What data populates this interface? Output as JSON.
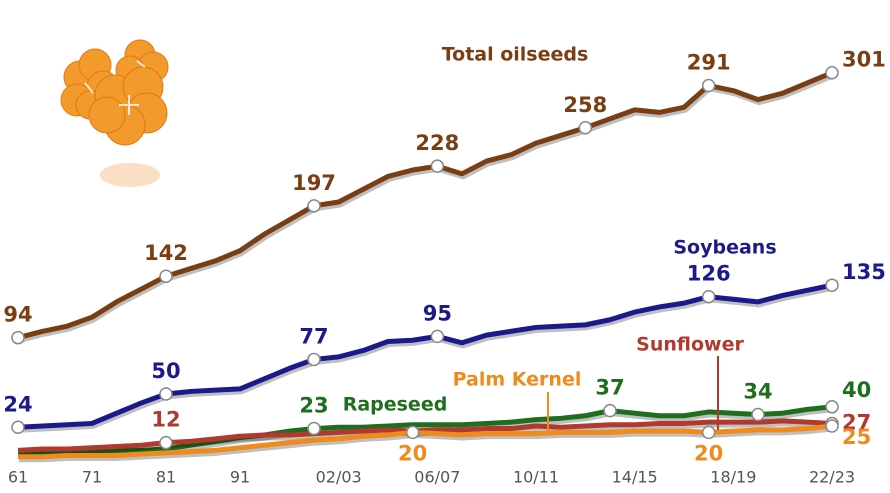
{
  "chart_data": {
    "type": "line",
    "categories": [
      "61",
      null,
      null,
      "71",
      null,
      null,
      "81",
      null,
      null,
      "91",
      null,
      null,
      null,
      "02/03",
      null,
      null,
      null,
      "06/07",
      null,
      null,
      null,
      "10/11",
      null,
      null,
      null,
      "14/15",
      null,
      null,
      null,
      "18/19",
      null,
      null,
      null,
      "22/23"
    ],
    "ylim": [
      0,
      320
    ],
    "series": [
      {
        "name": "Total oilseeds",
        "color": "#7a3e12",
        "values": [
          94,
          99,
          103,
          110,
          122,
          132,
          142,
          148,
          154,
          162,
          175,
          186,
          197,
          200,
          210,
          220,
          225,
          228,
          222,
          232,
          237,
          246,
          252,
          258,
          265,
          272,
          270,
          274,
          291,
          287,
          280,
          285,
          293,
          301
        ],
        "value_labels": [
          "94",
          null,
          null,
          null,
          null,
          null,
          "142",
          null,
          null,
          null,
          null,
          null,
          "197",
          null,
          null,
          null,
          null,
          "228",
          null,
          null,
          null,
          null,
          null,
          "258",
          null,
          null,
          null,
          null,
          "291",
          null,
          null,
          null,
          null,
          "301"
        ]
      },
      {
        "name": "Soybeans",
        "color": "#1a1a8c",
        "values": [
          24,
          25,
          26,
          27,
          35,
          43,
          50,
          52,
          53,
          54,
          62,
          70,
          77,
          79,
          84,
          91,
          92,
          95,
          90,
          96,
          99,
          102,
          103,
          104,
          108,
          114,
          118,
          121,
          126,
          124,
          122,
          127,
          131,
          135
        ],
        "value_labels": [
          "24",
          null,
          null,
          null,
          null,
          null,
          "50",
          null,
          null,
          null,
          null,
          null,
          "77",
          null,
          null,
          null,
          null,
          "95",
          null,
          null,
          null,
          null,
          null,
          null,
          null,
          null,
          null,
          null,
          "126",
          null,
          null,
          null,
          null,
          "135"
        ]
      },
      {
        "name": "Rapeseed",
        "color": "#1e6e1e",
        "values": [
          4,
          4,
          5,
          5,
          6,
          6,
          7,
          10,
          13,
          16,
          18,
          21,
          23,
          24,
          24,
          25,
          26,
          26,
          26,
          27,
          28,
          30,
          31,
          33,
          37,
          35,
          33,
          33,
          36,
          35,
          34,
          35,
          38,
          40
        ],
        "value_labels": [
          null,
          null,
          null,
          null,
          null,
          null,
          null,
          null,
          null,
          null,
          null,
          null,
          "23",
          null,
          null,
          null,
          null,
          null,
          null,
          null,
          null,
          null,
          null,
          null,
          "37",
          null,
          null,
          null,
          null,
          null,
          "34",
          null,
          null,
          "40"
        ]
      },
      {
        "name": "Sunflower",
        "color": "#b03a2e",
        "values": [
          6,
          7,
          7,
          8,
          9,
          10,
          12,
          13,
          15,
          17,
          18,
          18,
          19,
          20,
          21,
          22,
          21,
          22,
          22,
          23,
          23,
          25,
          24,
          25,
          26,
          26,
          27,
          27,
          28,
          28,
          28,
          29,
          28,
          27
        ],
        "value_labels": [
          null,
          null,
          null,
          null,
          null,
          null,
          "12",
          null,
          null,
          null,
          null,
          null,
          null,
          null,
          null,
          null,
          null,
          null,
          null,
          null,
          null,
          null,
          null,
          null,
          null,
          null,
          null,
          null,
          null,
          null,
          null,
          null,
          null,
          "27"
        ]
      },
      {
        "name": "Palm Kernel",
        "color": "#f08a1c",
        "values": [
          1,
          1,
          2,
          2,
          2,
          3,
          4,
          5,
          6,
          8,
          10,
          12,
          14,
          15,
          17,
          18,
          20,
          19,
          18,
          19,
          19,
          19,
          20,
          20,
          20,
          21,
          21,
          21,
          20,
          21,
          22,
          22,
          23,
          25
        ],
        "value_labels": [
          null,
          null,
          null,
          null,
          null,
          null,
          null,
          null,
          null,
          null,
          null,
          null,
          null,
          null,
          null,
          null,
          "20",
          null,
          null,
          null,
          null,
          null,
          null,
          null,
          null,
          null,
          null,
          null,
          "20",
          null,
          null,
          null,
          null,
          "25"
        ]
      }
    ]
  }
}
